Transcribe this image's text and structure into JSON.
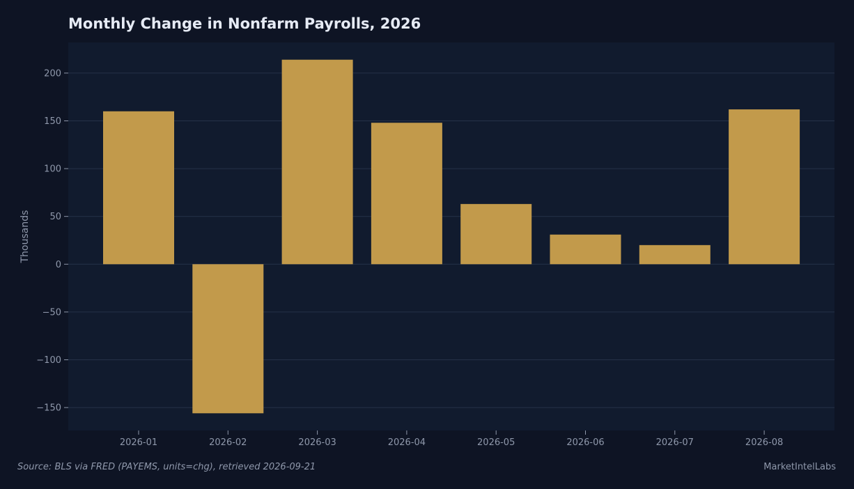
{
  "chart_data": {
    "type": "bar",
    "title": "Monthly Change in Nonfarm Payrolls, 2026",
    "xlabel": "",
    "ylabel": "Thousands",
    "categories": [
      "2026-01",
      "2026-02",
      "2026-03",
      "2026-04",
      "2026-05",
      "2026-06",
      "2026-07",
      "2026-08"
    ],
    "values": [
      160,
      -156,
      214,
      148,
      63,
      31,
      20,
      162
    ],
    "ylim": [
      -174,
      232
    ],
    "yticks": [
      -150,
      -100,
      -50,
      0,
      50,
      100,
      150,
      200
    ],
    "ytick_labels": [
      "−150",
      "−100",
      "−50",
      "0",
      "50",
      "100",
      "150",
      "200"
    ],
    "grid": "horizontal",
    "legend": "none"
  },
  "footer": {
    "source": "Source: BLS via FRED (PAYEMS, units=chg), retrieved 2026-09-21",
    "brand": "MarketIntelLabs"
  },
  "colors": {
    "background": "#0e1424",
    "plot_background": "#111b2e",
    "bar": "#c29a4b",
    "grid": "#263248",
    "text": "#8f98ab",
    "title": "#e6ebf5"
  }
}
